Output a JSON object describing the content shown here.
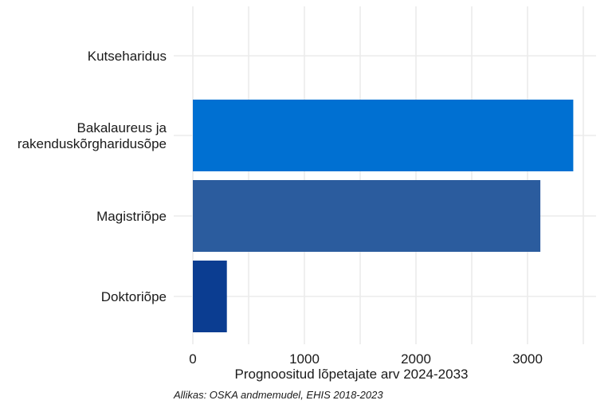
{
  "chart_data": {
    "type": "bar",
    "orientation": "horizontal",
    "categories": [
      [
        "Kutseharidus"
      ],
      [
        "Bakalaureus ja",
        "rakenduskõrgharidusõpe"
      ],
      [
        "Magistriõpe"
      ],
      [
        "Doktoriõpe"
      ]
    ],
    "values": [
      0,
      3410,
      3115,
      305
    ],
    "colors": [
      "#0070D2",
      "#0070D2",
      "#2B5C9E",
      "#0B3D91"
    ],
    "xlabel": "Prognoositud lõpetajate arv 2024-2033",
    "xlim": [
      0,
      3600
    ],
    "xticks": [
      0,
      1000,
      2000,
      3000
    ],
    "grid": true,
    "legend": "none"
  },
  "caption": "Allikas: OSKA andmemudel, EHIS 2018-2023"
}
